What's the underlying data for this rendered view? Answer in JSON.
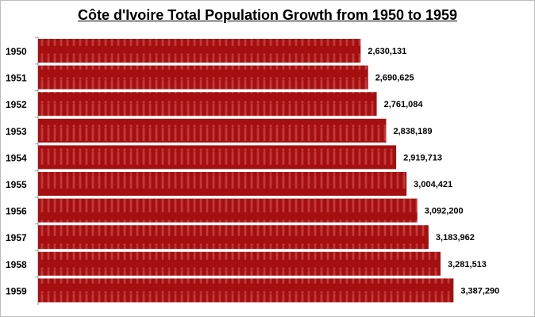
{
  "chart_data": {
    "type": "bar",
    "orientation": "horizontal",
    "title": "Côte d'Ivoire Total Population Growth from 1950 to 1959",
    "categories": [
      "1950",
      "1951",
      "1952",
      "1953",
      "1954",
      "1955",
      "1956",
      "1957",
      "1958",
      "1959"
    ],
    "values": [
      2630131,
      2690625,
      2761084,
      2838189,
      2919713,
      3004421,
      3092200,
      3183962,
      3281513,
      3387290
    ],
    "labels": [
      "2,630,131",
      "2,690,625",
      "2,761,084",
      "2,838,189",
      "2,919,713",
      "3,004,421",
      "3,092,200",
      "3,183,962",
      "3,281,513",
      "3,387,290"
    ],
    "xlim": [
      0,
      3700000
    ],
    "grid": false,
    "bar_color": "#a50f0f",
    "bar_pattern_color": "#c23a3a"
  }
}
